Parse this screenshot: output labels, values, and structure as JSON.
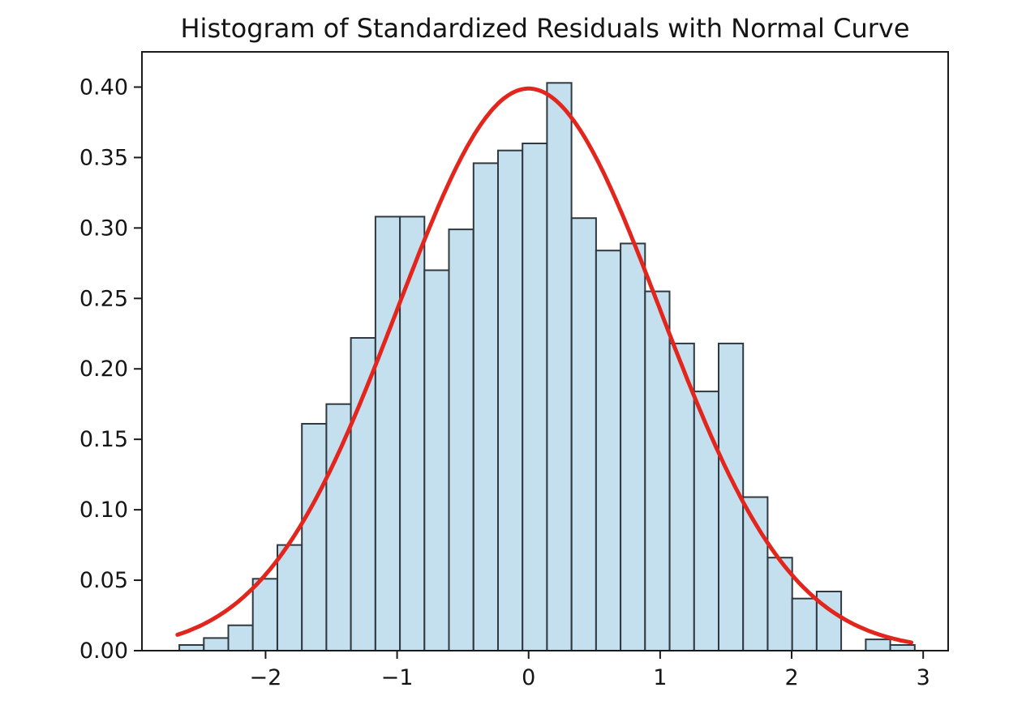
{
  "chart_data": {
    "type": "bar",
    "subtype": "histogram-with-normal-curve",
    "title": "Histogram of Standardized Residuals with Normal Curve",
    "xlabel": "",
    "ylabel": "",
    "xlim": [
      -2.94,
      3.19
    ],
    "ylim": [
      0,
      0.425
    ],
    "grid": false,
    "legend": "none",
    "x_ticks": {
      "values": [
        -2,
        -1,
        0,
        1,
        2,
        3
      ],
      "labels": [
        "−2",
        "−1",
        "0",
        "1",
        "2",
        "3"
      ]
    },
    "y_ticks": {
      "values": [
        0.0,
        0.05,
        0.1,
        0.15,
        0.2,
        0.25,
        0.3,
        0.35,
        0.4
      ],
      "labels": [
        "0.00",
        "0.05",
        "0.10",
        "0.15",
        "0.20",
        "0.25",
        "0.30",
        "0.35",
        "0.40"
      ]
    },
    "histogram": {
      "bin_start": -2.656,
      "bin_width": 0.1864,
      "bin_count": 30,
      "densities": [
        0.004,
        0.009,
        0.018,
        0.051,
        0.075,
        0.161,
        0.175,
        0.222,
        0.308,
        0.308,
        0.27,
        0.299,
        0.346,
        0.355,
        0.36,
        0.403,
        0.307,
        0.284,
        0.289,
        0.255,
        0.218,
        0.184,
        0.218,
        0.109,
        0.066,
        0.037,
        0.042,
        0.0,
        0.008,
        0.004
      ],
      "fill_color": "#c4dfee",
      "edge_color": "#30393f"
    },
    "curve": {
      "name": "Normal Curve",
      "distribution": "standard-normal-pdf",
      "mean": 0,
      "std": 1,
      "x_start": -2.67,
      "x_end": 2.92,
      "peak_density": 0.3989,
      "color": "#e3261d",
      "line_width": 5
    },
    "axis_color": "#1a1a1a"
  }
}
